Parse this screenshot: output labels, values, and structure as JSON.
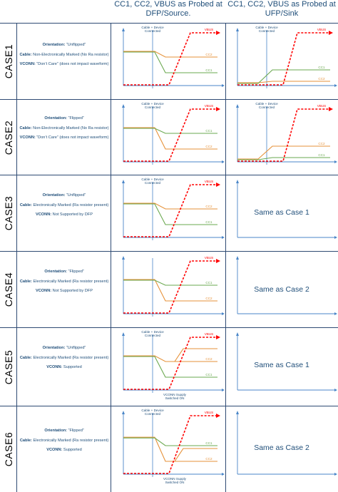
{
  "headers": {
    "source": "CC1, CC2, VBUS as Probed at DFP/Source.",
    "sink": "CC1, CC2, VBUS as Probed at UFP/Sink"
  },
  "labels": {
    "cable_device": "Cable + Device Connected",
    "vbus": "VBUS",
    "cc1": "CC1",
    "cc2": "CC2",
    "vconn_supply": "VCONN Supply Switched ON"
  },
  "cases": [
    {
      "name": "CASE1",
      "orientation_key": "Orientation:",
      "orientation": "“Unflipped”",
      "cable_key": "Cable:",
      "cable": "Non-Electronically Marked (No Ra resistor)",
      "vconn_key": "VCONN:",
      "vconn": "“Don’t Care” (does not impact waveform)",
      "sink_text": ""
    },
    {
      "name": "CASE2",
      "orientation_key": "Orientation:",
      "orientation": "“Flipped”",
      "cable_key": "Cable:",
      "cable": "Non-Electronically Marked (No Ra resistor)",
      "vconn_key": "VCONN:",
      "vconn": "“Don’t Care” (does not impact waveform)",
      "sink_text": ""
    },
    {
      "name": "CASE3",
      "orientation_key": "Orientation:",
      "orientation": "“Unflipped”",
      "cable_key": "Cable:",
      "cable": "Electronically Marked (Ra resistor present)",
      "vconn_key": "VCONN:",
      "vconn": "Not Supported by DFP",
      "sink_text": "Same as Case 1"
    },
    {
      "name": "CASE4",
      "orientation_key": "Orientation:",
      "orientation": "“Flipped”",
      "cable_key": "Cable:",
      "cable": "Electronically Marked (Ra resistor present)",
      "vconn_key": "VCONN:",
      "vconn": "Not Supported by DFP",
      "sink_text": "Same as Case 2"
    },
    {
      "name": "CASE5",
      "orientation_key": "Orientation:",
      "orientation": "“Unflipped”",
      "cable_key": "Cable:",
      "cable": "Electronically Marked (Ra resistor present)",
      "vconn_key": "VCONN:",
      "vconn": "Supported",
      "sink_text": "Same as Case 1"
    },
    {
      "name": "CASE6",
      "orientation_key": "Orientation:",
      "orientation": "“Flipped”",
      "cable_key": "Cable:",
      "cable": "Electronically Marked (Ra resistor present)",
      "vconn_key": "VCONN:",
      "vconn": "Supported",
      "sink_text": "Same as Case 2"
    }
  ],
  "colors": {
    "vbus": "#ff0000",
    "cc1": "#6aa84f",
    "cc2": "#e69138",
    "axis": "#4a86c8",
    "text": "#1f4e79",
    "grid": "#2e4a73"
  }
}
